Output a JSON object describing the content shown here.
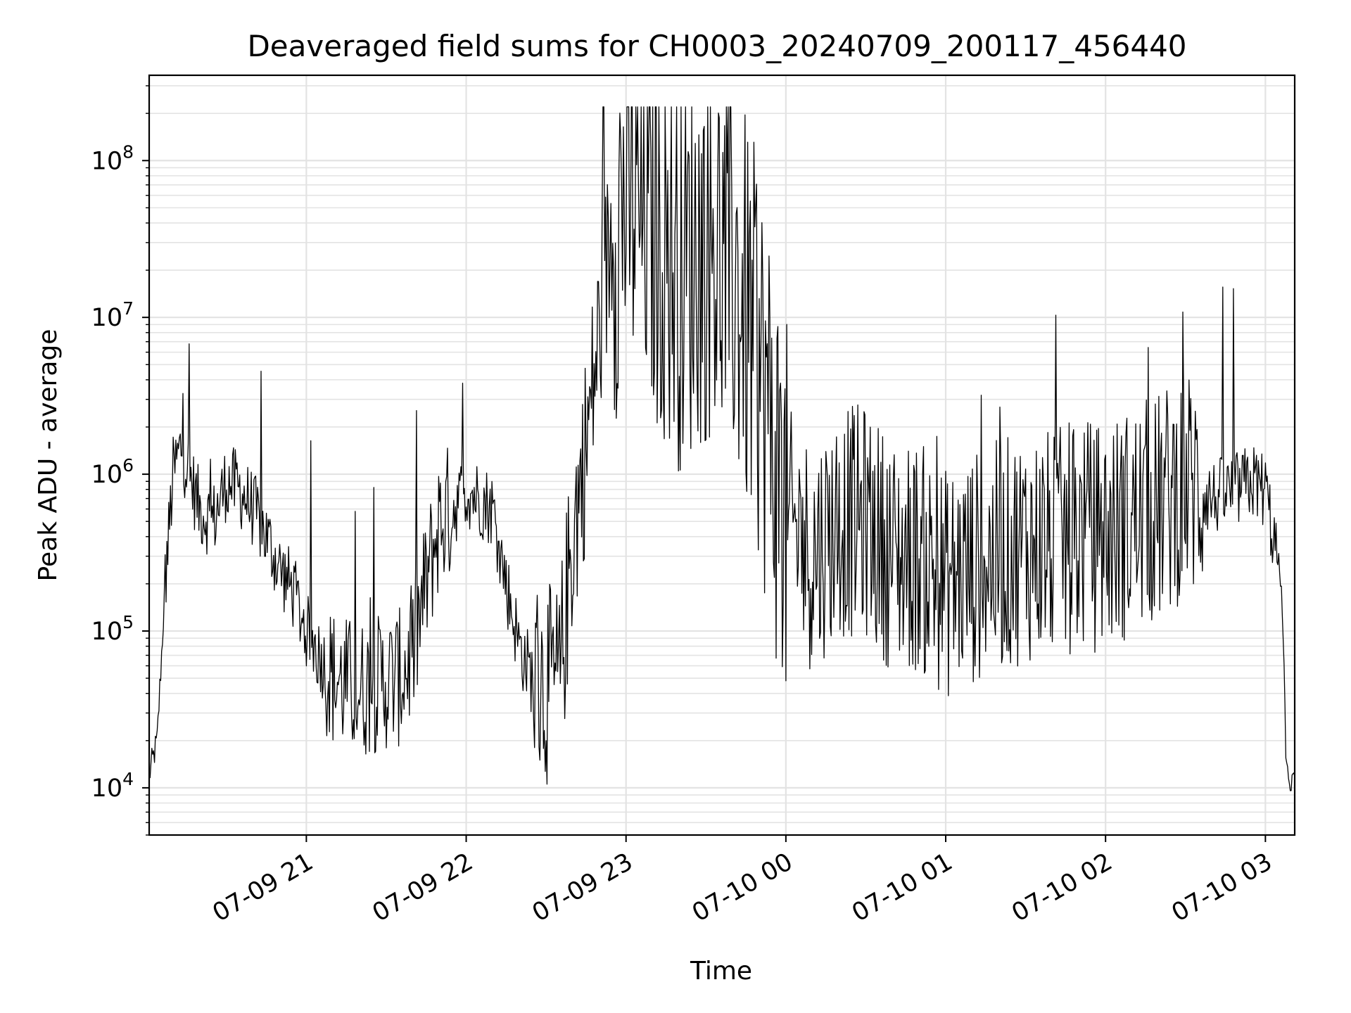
{
  "chart_data": {
    "type": "line",
    "title": "Deaveraged field sums for CH0003_20240709_200117_456440",
    "xlabel": "Time",
    "ylabel": "Peak ADU - average",
    "y_scale": "log",
    "ylim": [
      5000,
      350000000
    ],
    "xlim": [
      "2024-07-09 20:01",
      "2024-07-10 03:11"
    ],
    "grid": true,
    "line_color": "#000000",
    "x_ticks": [
      "07-09 21",
      "07-09 22",
      "07-09 23",
      "07-10 00",
      "07-10 01",
      "07-10 02",
      "07-10 03"
    ],
    "y_ticks": [
      {
        "value": 10000,
        "base": "10",
        "exp": "4"
      },
      {
        "value": 100000,
        "base": "10",
        "exp": "5"
      },
      {
        "value": 1000000,
        "base": "10",
        "exp": "6"
      },
      {
        "value": 10000000,
        "base": "10",
        "exp": "7"
      },
      {
        "value": 100000000,
        "base": "10",
        "exp": "8"
      }
    ],
    "series": [
      {
        "x": [
          "2024-07-09 20:01",
          "2024-07-09 20:04",
          "2024-07-09 20:07",
          "2024-07-09 20:10",
          "2024-07-09 20:13",
          "2024-07-09 20:16",
          "2024-07-09 20:20",
          "2024-07-09 20:25",
          "2024-07-09 20:30",
          "2024-07-09 20:35",
          "2024-07-09 20:40",
          "2024-07-09 20:45",
          "2024-07-09 20:50",
          "2024-07-09 20:55",
          "2024-07-09 21:00",
          "2024-07-09 21:05",
          "2024-07-09 21:10",
          "2024-07-09 21:15",
          "2024-07-09 21:20",
          "2024-07-09 21:25",
          "2024-07-09 21:30",
          "2024-07-09 21:35",
          "2024-07-09 21:40",
          "2024-07-09 21:45",
          "2024-07-09 21:50",
          "2024-07-09 21:55",
          "2024-07-09 22:00",
          "2024-07-09 22:05",
          "2024-07-09 22:10",
          "2024-07-09 22:15",
          "2024-07-09 22:20",
          "2024-07-09 22:25",
          "2024-07-09 22:30",
          "2024-07-09 22:35",
          "2024-07-09 22:40",
          "2024-07-09 22:45",
          "2024-07-09 22:50",
          "2024-07-09 22:55",
          "2024-07-09 23:00",
          "2024-07-09 23:10",
          "2024-07-09 23:20",
          "2024-07-09 23:30",
          "2024-07-09 23:40",
          "2024-07-09 23:50",
          "2024-07-10 00:00",
          "2024-07-10 00:10",
          "2024-07-10 00:20",
          "2024-07-10 00:30",
          "2024-07-10 00:40",
          "2024-07-10 00:50",
          "2024-07-10 01:00",
          "2024-07-10 01:10",
          "2024-07-10 01:20",
          "2024-07-10 01:30",
          "2024-07-10 01:40",
          "2024-07-10 01:50",
          "2024-07-10 02:00",
          "2024-07-10 02:10",
          "2024-07-10 02:20",
          "2024-07-10 02:30",
          "2024-07-10 02:40",
          "2024-07-10 02:50",
          "2024-07-10 02:55",
          "2024-07-10 03:00",
          "2024-07-10 03:03",
          "2024-07-10 03:06",
          "2024-07-10 03:08",
          "2024-07-10 03:11"
        ],
        "y": [
          12000,
          20000,
          200000,
          1000000,
          1500000,
          1000000,
          600000,
          500000,
          900000,
          800000,
          600000,
          400000,
          250000,
          180000,
          100000,
          70000,
          50000,
          45000,
          42000,
          45000,
          48000,
          50000,
          70000,
          200000,
          500000,
          600000,
          800000,
          700000,
          600000,
          200000,
          80000,
          50000,
          45000,
          45000,
          400000,
          1500000,
          8000000,
          40000000,
          60000000,
          40000000,
          20000000,
          30000000,
          20000000,
          5000000,
          500000,
          300000,
          500000,
          500000,
          300000,
          300000,
          200000,
          250000,
          300000,
          350000,
          350000,
          400000,
          400000,
          500000,
          600000,
          900000,
          700000,
          800000,
          900000,
          800000,
          400000,
          200000,
          12000,
          10000
        ]
      }
    ]
  }
}
